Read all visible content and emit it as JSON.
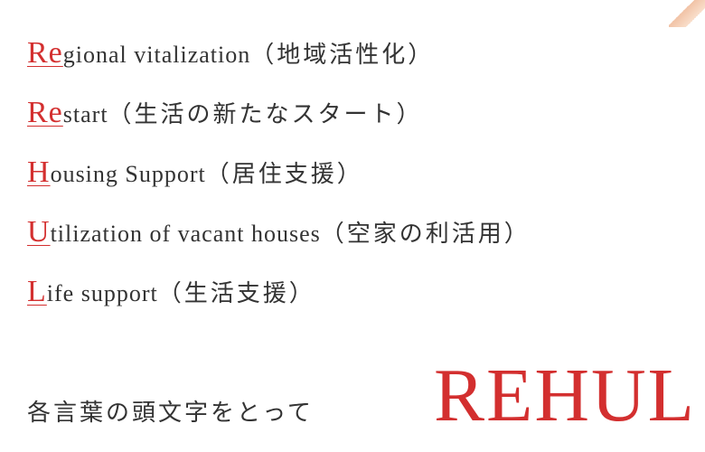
{
  "lines": [
    {
      "initial": "Re",
      "rest_en": "gional vitalization",
      "jp": "（地域活性化）"
    },
    {
      "initial": "Re",
      "rest_en": "start",
      "jp": "（生活の新たなスタート）"
    },
    {
      "initial": "H",
      "rest_en": "ousing Support",
      "jp": "（居住支援）"
    },
    {
      "initial": "U",
      "rest_en": "tilization of vacant houses",
      "jp": "（空家の利活用）"
    },
    {
      "initial": "L",
      "rest_en": "ife support",
      "jp": "（生活支援）"
    }
  ],
  "bottom_text": "各言葉の頭文字をとって",
  "acronym": "REHUL",
  "colors": {
    "accent": "#d32f2f",
    "text": "#333333",
    "bg": "#ffffff"
  },
  "typography": {
    "line_fontsize": 26,
    "initial_fontsize": 34,
    "acronym_fontsize": 84,
    "font_family_en": "Times New Roman, serif",
    "font_family_jp": "Hiragino Mincho ProN, Yu Mincho, serif"
  }
}
